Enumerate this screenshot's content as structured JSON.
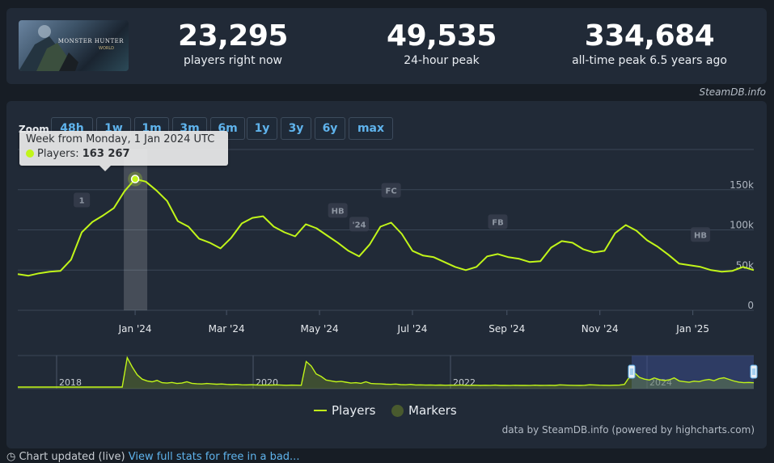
{
  "stats": [
    {
      "value": "23,295",
      "label": "players right now"
    },
    {
      "value": "49,535",
      "label": "24-hour peak"
    },
    {
      "value": "334,684",
      "label": "all-time peak 6.5 years ago"
    }
  ],
  "game_image": {
    "title": "MONSTER HUNTER",
    "subtitle": "WORLD"
  },
  "steamdb_credit": "SteamDB.info",
  "zoom": {
    "label": "Zoom",
    "buttons": [
      "48h",
      "1w",
      "1m",
      "3m",
      "6m",
      "1y",
      "3y",
      "6y",
      "max"
    ]
  },
  "tooltip": {
    "title": "Week from Monday, 1 Jan 2024 UTC",
    "series_label": "Players: ",
    "value": "163 267"
  },
  "legend": {
    "players": "Players",
    "markers": "Markers"
  },
  "credit": "data by SteamDB.info (powered by highcharts.com)",
  "footer": {
    "text": "Chart updated (live)",
    "link": "View full stats for free in a bad..."
  },
  "colors": {
    "series": "#c1f519",
    "marker_fill": "#495a2e",
    "navigator_selection": "#3a4a8a"
  },
  "chart_data": {
    "type": "line",
    "title": "",
    "xlabel": "",
    "ylabel": "",
    "ylim": [
      0,
      200000
    ],
    "y_ticks": [
      "0",
      "50k",
      "100k",
      "150k"
    ],
    "x_ticks": [
      "Jan '24",
      "Mar '24",
      "May '24",
      "Jul '24",
      "Sep '24",
      "Nov '24",
      "Jan '25"
    ],
    "series": [
      {
        "name": "Players",
        "points": [
          [
            "2023-10-16",
            45000
          ],
          [
            "2023-10-23",
            43000
          ],
          [
            "2023-10-30",
            46000
          ],
          [
            "2023-11-06",
            48000
          ],
          [
            "2023-11-13",
            49000
          ],
          [
            "2023-11-20",
            63000
          ],
          [
            "2023-11-27",
            97000
          ],
          [
            "2023-12-04",
            110000
          ],
          [
            "2023-12-11",
            118000
          ],
          [
            "2023-12-18",
            127000
          ],
          [
            "2023-12-25",
            148000
          ],
          [
            "2024-01-01",
            163267
          ],
          [
            "2024-01-08",
            160000
          ],
          [
            "2024-01-15",
            149000
          ],
          [
            "2024-01-22",
            136000
          ],
          [
            "2024-01-29",
            111000
          ],
          [
            "2024-02-05",
            104000
          ],
          [
            "2024-02-12",
            89000
          ],
          [
            "2024-02-19",
            84000
          ],
          [
            "2024-02-26",
            77000
          ],
          [
            "2024-03-04",
            90000
          ],
          [
            "2024-03-11",
            108000
          ],
          [
            "2024-03-18",
            115000
          ],
          [
            "2024-03-25",
            117000
          ],
          [
            "2024-04-01",
            104000
          ],
          [
            "2024-04-08",
            97000
          ],
          [
            "2024-04-15",
            92000
          ],
          [
            "2024-04-22",
            107000
          ],
          [
            "2024-04-29",
            102000
          ],
          [
            "2024-05-06",
            93000
          ],
          [
            "2024-05-13",
            84000
          ],
          [
            "2024-05-20",
            74000
          ],
          [
            "2024-05-27",
            67000
          ],
          [
            "2024-06-03",
            82000
          ],
          [
            "2024-06-10",
            104000
          ],
          [
            "2024-06-17",
            109000
          ],
          [
            "2024-06-24",
            95000
          ],
          [
            "2024-07-01",
            74000
          ],
          [
            "2024-07-08",
            68000
          ],
          [
            "2024-07-15",
            66000
          ],
          [
            "2024-07-22",
            60000
          ],
          [
            "2024-07-29",
            54000
          ],
          [
            "2024-08-05",
            50000
          ],
          [
            "2024-08-12",
            54000
          ],
          [
            "2024-08-19",
            67000
          ],
          [
            "2024-08-26",
            70000
          ],
          [
            "2024-09-02",
            66000
          ],
          [
            "2024-09-09",
            64000
          ],
          [
            "2024-09-16",
            60000
          ],
          [
            "2024-09-23",
            61000
          ],
          [
            "2024-09-30",
            78000
          ],
          [
            "2024-10-07",
            86000
          ],
          [
            "2024-10-14",
            84000
          ],
          [
            "2024-10-21",
            76000
          ],
          [
            "2024-10-28",
            72000
          ],
          [
            "2024-11-04",
            74000
          ],
          [
            "2024-11-11",
            96000
          ],
          [
            "2024-11-18",
            106000
          ],
          [
            "2024-11-25",
            99000
          ],
          [
            "2024-12-02",
            87000
          ],
          [
            "2024-12-09",
            79000
          ],
          [
            "2024-12-16",
            69000
          ],
          [
            "2024-12-23",
            58000
          ],
          [
            "2024-12-30",
            56000
          ],
          [
            "2025-01-06",
            54000
          ],
          [
            "2025-01-13",
            50000
          ],
          [
            "2025-01-20",
            48000
          ],
          [
            "2025-01-27",
            49000
          ],
          [
            "2025-02-03",
            54000
          ],
          [
            "2025-02-10",
            50000
          ]
        ]
      }
    ],
    "markers": [
      {
        "label": "1",
        "date": "2023-11-27"
      },
      {
        "label": "HB",
        "date": "2024-05-13"
      },
      {
        "label": "'24",
        "date": "2024-05-27"
      },
      {
        "label": "FC",
        "date": "2024-06-17"
      },
      {
        "label": "FB",
        "date": "2024-08-26"
      },
      {
        "label": "HB",
        "date": "2025-01-06"
      }
    ],
    "highlight_date": "2024-01-01",
    "navigator": {
      "year_labels": [
        "2018",
        "2020",
        "2022",
        "2024"
      ],
      "values": [
        0,
        0,
        0,
        0,
        0,
        0,
        0,
        0,
        0,
        0,
        0,
        0,
        0,
        0,
        0,
        0,
        0,
        0,
        0,
        0,
        0,
        0,
        334684,
        230000,
        140000,
        90000,
        70000,
        60000,
        75000,
        50000,
        45000,
        52000,
        40000,
        45000,
        60000,
        42000,
        38000,
        35000,
        40000,
        36000,
        32000,
        35000,
        30000,
        28000,
        30000,
        26000,
        25000,
        27000,
        24000,
        22000,
        24000,
        23000,
        25000,
        22000,
        20000,
        22000,
        21000,
        20000,
        290000,
        240000,
        150000,
        120000,
        80000,
        70000,
        60000,
        65000,
        55000,
        45000,
        50000,
        42000,
        60000,
        40000,
        38000,
        36000,
        32000,
        30000,
        34000,
        28000,
        26000,
        30000,
        24000,
        25000,
        22000,
        24000,
        21000,
        23000,
        20000,
        22000,
        21000,
        24000,
        20000,
        19000,
        21000,
        18000,
        20000,
        19000,
        22000,
        18000,
        19000,
        17000,
        20000,
        18000,
        19000,
        17000,
        21000,
        18000,
        19000,
        20000,
        18000,
        25000,
        22000,
        20000,
        19000,
        18000,
        20000,
        26000,
        24000,
        21000,
        20000,
        19000,
        21000,
        22000,
        30000,
        115000,
        163267,
        110000,
        90000,
        80000,
        104000,
        85000,
        74000,
        82000,
        104000,
        70000,
        62000,
        54000,
        67000,
        62000,
        78000,
        86000,
        72000,
        96000,
        106000,
        87000,
        69000,
        56000,
        50000,
        52000,
        49000
      ]
    }
  }
}
